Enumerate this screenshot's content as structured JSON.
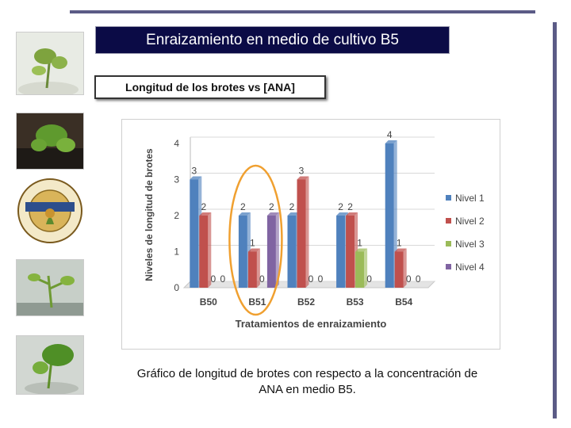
{
  "slide": {
    "title": "Enraizamiento en medio de cultivo B5",
    "subtitle": "Longitud de los brotes vs [ANA]",
    "caption": "Gráfico de longitud de brotes con respecto a la concentración de ANA en medio B5.",
    "logo": {
      "ring_text": "Laboratorio de Cultivo de Tejidos",
      "banner_text": "INGENIERÍA EN",
      "bottom_text": "BIOTECNOLOGÍA"
    },
    "photos": [
      "plant-photo",
      "plant-photo",
      "plant-photo",
      "plant-photo"
    ]
  },
  "colors": {
    "title_bg": "#0b0b46",
    "rule": "#5b5b86",
    "highlight": "#f0a030"
  },
  "chart_data": {
    "type": "bar",
    "title": "",
    "xlabel": "Tratamientos de enraizamiento",
    "ylabel": "Niveles de longitud de brotes",
    "categories": [
      "B50",
      "B51",
      "B52",
      "B53",
      "B54"
    ],
    "ylim": [
      0,
      4
    ],
    "yticks": [
      "0",
      "1",
      "2",
      "3",
      "4"
    ],
    "grid": true,
    "legend_position": "right",
    "highlighted_category": "B51",
    "series": [
      {
        "name": "Nivel 1",
        "color": "#4f81bd",
        "values": [
          3,
          2,
          2,
          2,
          4
        ]
      },
      {
        "name": "Nivel 2",
        "color": "#c0504d",
        "values": [
          2,
          1,
          3,
          2,
          1
        ]
      },
      {
        "name": "Nivel 3",
        "color": "#9bbb59",
        "values": [
          0,
          0,
          0,
          1,
          0
        ]
      },
      {
        "name": "Nivel 4",
        "color": "#8064a2",
        "values": [
          0,
          2,
          0,
          0,
          0
        ]
      }
    ]
  }
}
